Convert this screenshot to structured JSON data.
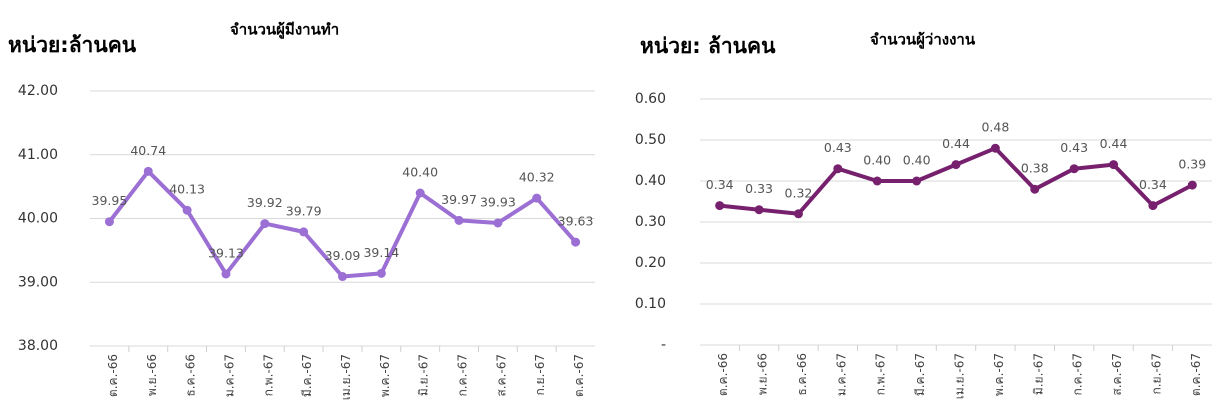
{
  "chart_data": [
    {
      "type": "line",
      "title": "จำนวนผู้มีงานทำ",
      "unit_label": "หน่วย:ล้านคน",
      "categories": [
        "ต.ค.-66",
        "พ.ย.-66",
        "ธ.ค.-66",
        "ม.ค.-67",
        "ก.พ.-67",
        "มี.ค.-67",
        "เม.ย.-67",
        "พ.ค.-67",
        "มิ.ย.-67",
        "ก.ค.-67",
        "ส.ค.-67",
        "ก.ย.-67",
        "ต.ค.-67"
      ],
      "values": [
        39.95,
        40.74,
        40.13,
        39.13,
        39.92,
        39.79,
        39.09,
        39.14,
        40.4,
        39.97,
        39.93,
        40.32,
        39.63
      ],
      "value_labels": [
        "39.95",
        "40.74",
        "40.13",
        "39.13",
        "39.92",
        "39.79",
        "39.09",
        "39.14",
        "40.40",
        "39.97",
        "39.93",
        "40.32",
        "39.63"
      ],
      "color": "#9b6fd3",
      "ylim": [
        38,
        42
      ],
      "yticks": [
        {
          "value": 38,
          "label": "38.00"
        },
        {
          "value": 39,
          "label": "39.00"
        },
        {
          "value": 40,
          "label": "40.00"
        },
        {
          "value": 41,
          "label": "41.00"
        },
        {
          "value": 42,
          "label": "42.00"
        }
      ],
      "grid": true
    },
    {
      "type": "line",
      "title": "จำนวนผู้ว่างงาน",
      "unit_label": "หน่วย: ล้านคน",
      "categories": [
        "ต.ค.-66",
        "พ.ย.-66",
        "ธ.ค.-66",
        "ม.ค.-67",
        "ก.พ.-67",
        "มี.ค.-67",
        "เม.ย.-67",
        "พ.ค.-67",
        "มิ.ย.-67",
        "ก.ค.-67",
        "ส.ค.-67",
        "ก.ย.-67",
        "ต.ค.-67"
      ],
      "values": [
        0.34,
        0.33,
        0.32,
        0.43,
        0.4,
        0.4,
        0.44,
        0.48,
        0.38,
        0.43,
        0.44,
        0.34,
        0.39
      ],
      "value_labels": [
        "0.34",
        "0.33",
        "0.32",
        "0.43",
        "0.40",
        "0.40",
        "0.44",
        "0.48",
        "0.38",
        "0.43",
        "0.44",
        "0.34",
        "0.39"
      ],
      "color": "#76206e",
      "ylim": [
        0,
        0.6
      ],
      "yticks": [
        {
          "value": 0,
          "label": "-"
        },
        {
          "value": 0.1,
          "label": "0.10"
        },
        {
          "value": 0.2,
          "label": "0.20"
        },
        {
          "value": 0.3,
          "label": "0.30"
        },
        {
          "value": 0.4,
          "label": "0.40"
        },
        {
          "value": 0.5,
          "label": "0.50"
        },
        {
          "value": 0.6,
          "label": "0.60"
        }
      ],
      "grid": true
    }
  ]
}
